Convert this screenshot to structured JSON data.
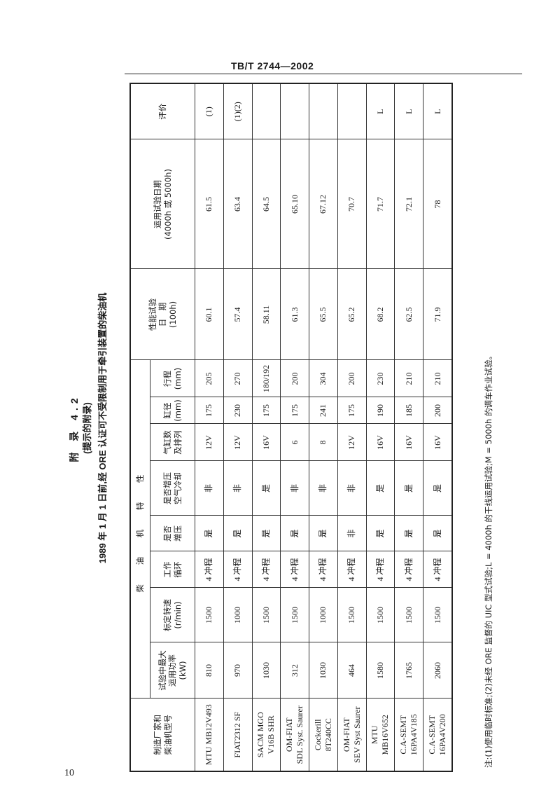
{
  "header": {
    "doc_code": "TB/T 2744—2002"
  },
  "page_number": "10",
  "title": {
    "line1": "附 录 4.2",
    "line2": "(提示的附录)",
    "line3": "1989 年 1 月 1 日前,经 ORE 认证可不受限制用于牵引装置的柴油机"
  },
  "table": {
    "group_header": "柴 油 机 特 性",
    "columns": [
      "制造厂家和\n柴油机型号",
      "试验中最大\n运用功率\n(kW)",
      "标定转速\n(r/min)",
      "工作\n循环",
      "是否\n增压",
      "是否增压\n空气冷却",
      "气缸数\n及排列",
      "缸径\n(mm)",
      "行程\n(mm)",
      "性能试验\n日　期\n(100h)",
      "运用试验日期\n(4000h 或 5000h)",
      "评价"
    ],
    "rows": [
      [
        "MTU MB12V493",
        "810",
        "1500",
        "4 冲程",
        "是",
        "非",
        "12V",
        "175",
        "205",
        "60.1",
        "61.5",
        "(1)"
      ],
      [
        "FIAT2312 SF",
        "970",
        "1000",
        "4 冲程",
        "是",
        "非",
        "12V",
        "230",
        "270",
        "57.4",
        "63.4",
        "(1)(2)"
      ],
      [
        "SACM MGO\nV16B SHR",
        "1030",
        "1500",
        "4 冲程",
        "是",
        "是",
        "16V",
        "175",
        "180/192",
        "58.11",
        "64.5",
        ""
      ],
      [
        "OM-FIAT\nSDL Syst. Saurer",
        "312",
        "1500",
        "4 冲程",
        "是",
        "非",
        "6",
        "175",
        "200",
        "61.3",
        "65.10",
        ""
      ],
      [
        "Cockerill\n8T240CC",
        "1030",
        "1000",
        "4 冲程",
        "是",
        "非",
        "8",
        "241",
        "304",
        "65.5",
        "67.12",
        ""
      ],
      [
        "OM-FIAT\nSEV Syst Saurer",
        "464",
        "1500",
        "4 冲程",
        "非",
        "非",
        "12V",
        "175",
        "200",
        "65.2",
        "70.7",
        ""
      ],
      [
        "MTU\nMB16V652",
        "1580",
        "1500",
        "4 冲程",
        "是",
        "是",
        "16V",
        "190",
        "230",
        "68.2",
        "71.7",
        "L"
      ],
      [
        "C.A-SEMT\n16PA4V185",
        "1765",
        "1500",
        "4 冲程",
        "是",
        "是",
        "16V",
        "185",
        "210",
        "62.5",
        "72.1",
        "L"
      ],
      [
        "C.A-SEMT\n16PA4V200",
        "2060",
        "1500",
        "4 冲程",
        "是",
        "是",
        "16V",
        "200",
        "210",
        "71.9",
        "78",
        "L"
      ]
    ]
  },
  "footnote": "注:(1)使用临时标准;(2)未经 ORE 监督的 UIC 型式试验;L = 4000h 的干线运用试验;M = 5000h 的调车作业试验。"
}
